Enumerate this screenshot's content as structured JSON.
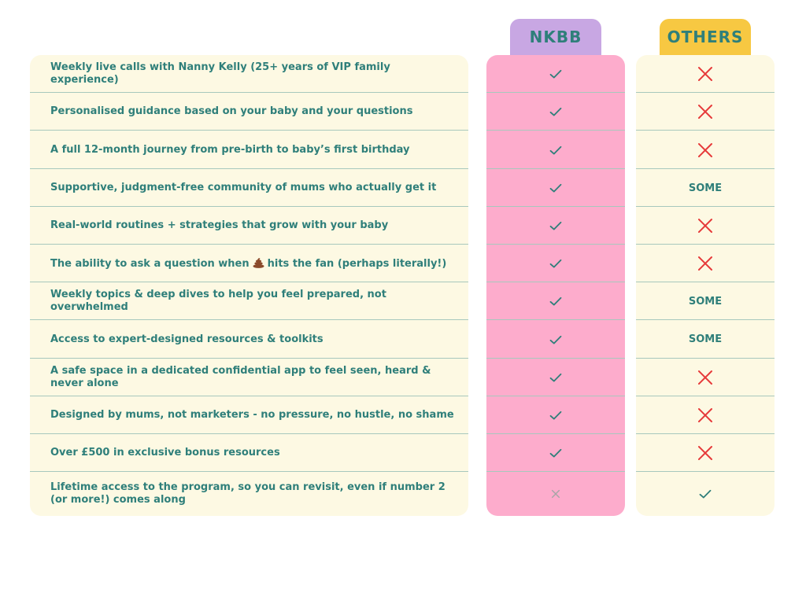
{
  "columns": {
    "nkbb": "NKBB",
    "others": "OTHERS"
  },
  "colors": {
    "nkbb_tab": "#c8a7e3",
    "others_tab": "#f7c842",
    "nkbb_column": "#fdaccc",
    "feature_column": "#fdf9e3",
    "others_column": "#fdf9e3",
    "text": "#2f7f7a",
    "cross": "#e63a3a",
    "divider": "#a7c8bd"
  },
  "rows": [
    {
      "feature": "Weekly live calls with Nanny Kelly (25+ years of VIP family experience)",
      "nkbb": "check",
      "others": "cross"
    },
    {
      "feature": "Personalised guidance based on your baby and your questions",
      "nkbb": "check",
      "others": "cross"
    },
    {
      "feature": "A full 12-month journey from pre-birth to baby’s first birthday",
      "nkbb": "check",
      "others": "cross"
    },
    {
      "feature": "Supportive, judgment-free community of mums who actually get it",
      "nkbb": "check",
      "others": "SOME"
    },
    {
      "feature": "Real-world routines + strategies that grow with your baby",
      "nkbb": "check",
      "others": "cross"
    },
    {
      "feature_before": "The ability to ask a question when",
      "feature_after": "hits the fan (perhaps literally!)",
      "feature_icon": "poop-icon",
      "nkbb": "check",
      "others": "cross"
    },
    {
      "feature": "Weekly topics & deep dives to help you feel prepared, not overwhelmed",
      "nkbb": "check",
      "others": "SOME"
    },
    {
      "feature": "Access to expert-designed resources & toolkits",
      "nkbb": "check",
      "others": "SOME"
    },
    {
      "feature": "A safe space in a dedicated confidential app to feel seen, heard & never alone",
      "nkbb": "check",
      "others": "cross"
    },
    {
      "feature": "Designed by mums, not marketers - no pressure, no hustle, no shame",
      "nkbb": "check",
      "others": "cross"
    },
    {
      "feature": "Over £500 in exclusive bonus resources",
      "nkbb": "check",
      "others": "cross"
    },
    {
      "feature": "Lifetime access to the program, so you can revisit, even if number 2 (or more!) comes along",
      "nkbb": "cross-small",
      "others": "check"
    }
  ]
}
